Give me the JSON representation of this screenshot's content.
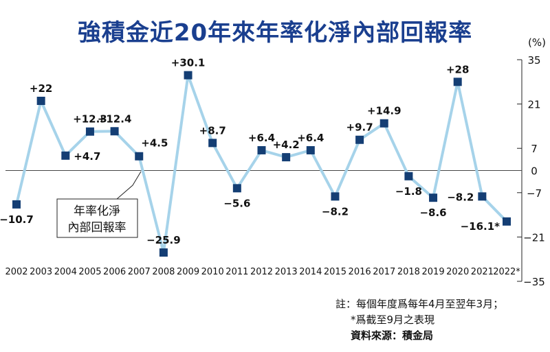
{
  "title": "強積金近20年來年率化淨內部回報率",
  "chart_data": {
    "type": "line",
    "unit_label": "(%)",
    "categories": [
      "2002",
      "2003",
      "2004",
      "2005",
      "2006",
      "2007",
      "2008",
      "2009",
      "2010",
      "2011",
      "2012",
      "2013",
      "2014",
      "2015",
      "2016",
      "2017",
      "2018",
      "2019",
      "2020",
      "2021",
      "2022*"
    ],
    "series": [
      {
        "values": [
          -10.7,
          22,
          4.7,
          12.3,
          12.4,
          4.5,
          -25.9,
          30.1,
          8.7,
          -5.6,
          6.4,
          4.2,
          6.4,
          -8.2,
          9.7,
          14.9,
          -1.8,
          -8.6,
          28,
          -8.2,
          -16.1
        ]
      }
    ],
    "point_labels": [
      "−10.7",
      "+22",
      "+4.7",
      "+12.3",
      "+12.4",
      "+4.5",
      "−25.9",
      "+30.1",
      "+8.7",
      "−5.6",
      "+6.4",
      "+4.2",
      "+6.4",
      "−8.2",
      "+9.7",
      "+14.9",
      "−1.8",
      "−8.6",
      "+28",
      "−8.2",
      "−16.1*"
    ],
    "yticks": [
      35,
      21,
      7,
      0,
      -7,
      -21,
      -35
    ],
    "ytick_labels": [
      "35",
      "21",
      "7",
      "0",
      "−7",
      "−21",
      "−35"
    ],
    "ylim": [
      -35,
      35
    ],
    "axis_side": "right",
    "line_color": "#a6d3ea",
    "marker_color": "#143e74",
    "annotation": {
      "lines": [
        "年率化淨",
        "內部回報率"
      ]
    }
  },
  "notes": {
    "note1": "註：每個年度爲每年4月至翌年3月；",
    "note2": "*爲截至9月之表現",
    "source": "資料來源：積金局"
  }
}
